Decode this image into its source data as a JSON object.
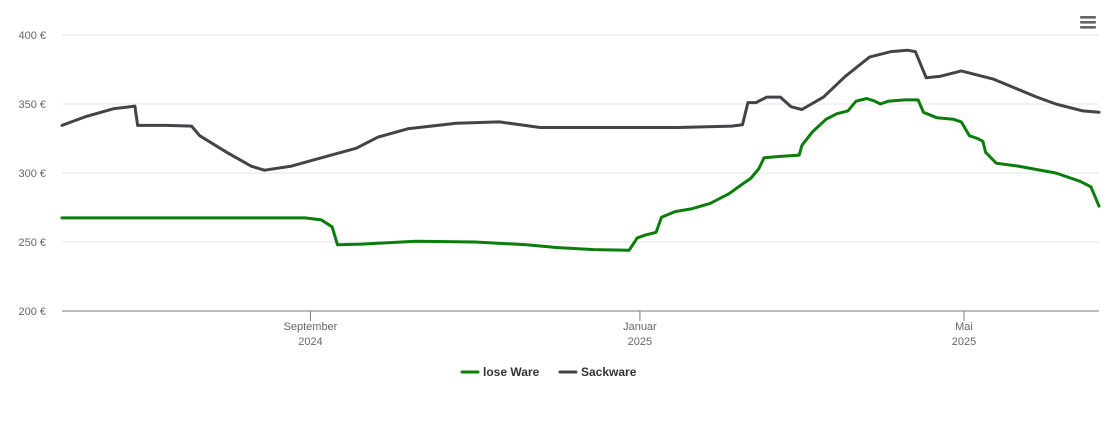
{
  "chart_data": {
    "type": "line",
    "yticks": [
      200,
      250,
      300,
      350,
      400
    ],
    "y_tick_labels": [
      "200 €",
      "250 €",
      "300 €",
      "350 €",
      "400 €"
    ],
    "ylim": [
      200,
      410
    ],
    "xlim": [
      "2024-06-01",
      "2025-06-20"
    ],
    "xticks": [
      {
        "date": "2024-09-01",
        "label1": "September",
        "label2": "2024"
      },
      {
        "date": "2025-01-01",
        "label1": "Januar",
        "label2": "2025"
      },
      {
        "date": "2025-05-01",
        "label1": "Mai",
        "label2": "2025"
      }
    ],
    "grid": true,
    "legend_position": "bottom-center",
    "series": [
      {
        "name": "lose Ware",
        "color": "#0a7d0a",
        "points": [
          [
            "2024-06-01",
            267.5
          ],
          [
            "2024-08-30",
            267.5
          ],
          [
            "2024-09-05",
            266
          ],
          [
            "2024-09-09",
            261
          ],
          [
            "2024-09-11",
            248
          ],
          [
            "2024-09-20",
            248.5
          ],
          [
            "2024-10-10",
            250.5
          ],
          [
            "2024-11-01",
            250
          ],
          [
            "2024-11-20",
            248
          ],
          [
            "2024-12-01",
            246
          ],
          [
            "2024-12-15",
            244.5
          ],
          [
            "2024-12-28",
            244
          ],
          [
            "2024-12-31",
            253
          ],
          [
            "2025-01-03",
            255
          ],
          [
            "2025-01-07",
            257
          ],
          [
            "2025-01-09",
            268
          ],
          [
            "2025-01-14",
            272
          ],
          [
            "2025-01-20",
            274
          ],
          [
            "2025-01-27",
            278
          ],
          [
            "2025-02-03",
            285
          ],
          [
            "2025-02-08",
            292
          ],
          [
            "2025-02-11",
            296
          ],
          [
            "2025-02-14",
            303
          ],
          [
            "2025-02-16",
            311
          ],
          [
            "2025-02-22",
            312
          ],
          [
            "2025-03-01",
            313
          ],
          [
            "2025-03-02",
            320
          ],
          [
            "2025-03-06",
            330
          ],
          [
            "2025-03-11",
            339
          ],
          [
            "2025-03-15",
            343
          ],
          [
            "2025-03-19",
            345
          ],
          [
            "2025-03-22",
            352
          ],
          [
            "2025-03-26",
            354
          ],
          [
            "2025-03-29",
            352
          ],
          [
            "2025-03-31",
            350
          ],
          [
            "2025-04-03",
            352
          ],
          [
            "2025-04-09",
            353
          ],
          [
            "2025-04-14",
            353
          ],
          [
            "2025-04-16",
            344
          ],
          [
            "2025-04-21",
            340
          ],
          [
            "2025-04-27",
            339
          ],
          [
            "2025-04-30",
            337
          ],
          [
            "2025-05-03",
            327
          ],
          [
            "2025-05-06",
            325
          ],
          [
            "2025-05-08",
            323
          ],
          [
            "2025-05-09",
            315
          ],
          [
            "2025-05-13",
            307
          ],
          [
            "2025-05-21",
            305
          ],
          [
            "2025-06-04",
            300
          ],
          [
            "2025-06-13",
            294
          ],
          [
            "2025-06-17",
            290
          ],
          [
            "2025-06-20",
            276
          ]
        ]
      },
      {
        "name": "Sackware",
        "color": "#434348",
        "points": [
          [
            "2024-06-01",
            334.5
          ],
          [
            "2024-06-10",
            341
          ],
          [
            "2024-06-20",
            346.5
          ],
          [
            "2024-06-28",
            348.5
          ],
          [
            "2024-06-29",
            334.5
          ],
          [
            "2024-07-10",
            334.5
          ],
          [
            "2024-07-19",
            334
          ],
          [
            "2024-07-22",
            327
          ],
          [
            "2024-08-01",
            315
          ],
          [
            "2024-08-10",
            305
          ],
          [
            "2024-08-15",
            302
          ],
          [
            "2024-08-25",
            305
          ],
          [
            "2024-09-05",
            311
          ],
          [
            "2024-09-18",
            318
          ],
          [
            "2024-09-26",
            326
          ],
          [
            "2024-10-07",
            332
          ],
          [
            "2024-10-25",
            336
          ],
          [
            "2024-11-10",
            337
          ],
          [
            "2024-11-25",
            333
          ],
          [
            "2024-12-15",
            333
          ],
          [
            "2025-01-15",
            333
          ],
          [
            "2025-02-04",
            334
          ],
          [
            "2025-02-08",
            335
          ],
          [
            "2025-02-10",
            351
          ],
          [
            "2025-02-13",
            351
          ],
          [
            "2025-02-17",
            355
          ],
          [
            "2025-02-22",
            355
          ],
          [
            "2025-02-26",
            348
          ],
          [
            "2025-03-02",
            346
          ],
          [
            "2025-03-10",
            355
          ],
          [
            "2025-03-18",
            370
          ],
          [
            "2025-03-27",
            384
          ],
          [
            "2025-04-04",
            388
          ],
          [
            "2025-04-10",
            389
          ],
          [
            "2025-04-13",
            388
          ],
          [
            "2025-04-17",
            369
          ],
          [
            "2025-04-22",
            370
          ],
          [
            "2025-04-30",
            374
          ],
          [
            "2025-05-12",
            368
          ],
          [
            "2025-05-28",
            355
          ],
          [
            "2025-06-04",
            350
          ],
          [
            "2025-06-14",
            345
          ],
          [
            "2025-06-20",
            344
          ]
        ]
      }
    ]
  },
  "icons": {
    "menu": "hamburger-menu-icon"
  }
}
